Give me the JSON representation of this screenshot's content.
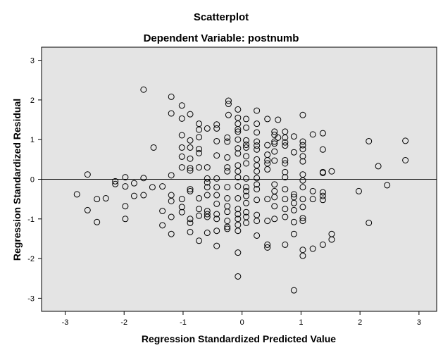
{
  "chart_data": {
    "type": "scatter",
    "title": "Scatterplot",
    "subtitle": "Dependent Variable: postnumb",
    "xlabel": "Regression Standardized Predicted Value",
    "ylabel": "Regression Standardized Residual",
    "xlim": [
      -3.4,
      3.3
    ],
    "ylim": [
      -3.33,
      3.33
    ],
    "xticks": [
      -3,
      -2,
      -1,
      0,
      1,
      2,
      3
    ],
    "yticks": [
      -3,
      -2,
      -1,
      0,
      1,
      2,
      3
    ],
    "reference_line_y": 0,
    "grid": false,
    "legend": "none",
    "colors": {
      "plot_bg": "#e4e4e4",
      "marker": "#000000",
      "page_bg": "#ffffff"
    },
    "points": [
      [
        -1.67,
        2.26
      ],
      [
        -1.2,
        2.08
      ],
      [
        -0.23,
        1.98
      ],
      [
        -0.23,
        1.9
      ],
      [
        -0.07,
        1.76
      ],
      [
        -1.02,
        1.86
      ],
      [
        -1.2,
        1.66
      ],
      [
        -1.02,
        1.53
      ],
      [
        -0.88,
        1.64
      ],
      [
        -0.07,
        1.55
      ],
      [
        -0.23,
        1.62
      ],
      [
        -0.07,
        1.4
      ],
      [
        0.07,
        1.52
      ],
      [
        0.25,
        1.73
      ],
      [
        0.25,
        1.4
      ],
      [
        0.43,
        1.52
      ],
      [
        0.61,
        1.5
      ],
      [
        1.03,
        1.62
      ],
      [
        -0.73,
        1.4
      ],
      [
        -0.59,
        1.28
      ],
      [
        -0.73,
        1.25
      ],
      [
        -0.43,
        1.38
      ],
      [
        -0.43,
        1.28
      ],
      [
        -0.07,
        1.26
      ],
      [
        -0.07,
        1.2
      ],
      [
        0.07,
        1.3
      ],
      [
        0.25,
        1.18
      ],
      [
        0.55,
        1.2
      ],
      [
        0.55,
        1.12
      ],
      [
        0.61,
        1.05
      ],
      [
        0.73,
        1.2
      ],
      [
        0.73,
        1.05
      ],
      [
        0.88,
        1.08
      ],
      [
        1.2,
        1.13
      ],
      [
        1.37,
        1.16
      ],
      [
        -1.02,
        1.11
      ],
      [
        -0.73,
        1.06
      ],
      [
        -0.88,
        0.98
      ],
      [
        -0.43,
        0.96
      ],
      [
        -0.25,
        1.05
      ],
      [
        -0.25,
        0.95
      ],
      [
        -0.07,
        1.0
      ],
      [
        0.07,
        0.98
      ],
      [
        0.07,
        0.87
      ],
      [
        0.25,
        0.95
      ],
      [
        0.25,
        0.85
      ],
      [
        0.43,
        0.86
      ],
      [
        0.55,
        0.95
      ],
      [
        0.55,
        0.9
      ],
      [
        0.73,
        0.93
      ],
      [
        0.73,
        0.85
      ],
      [
        1.03,
        0.95
      ],
      [
        1.03,
        0.86
      ],
      [
        -1.5,
        0.8
      ],
      [
        -1.02,
        0.8
      ],
      [
        -0.88,
        0.8
      ],
      [
        -0.73,
        0.76
      ],
      [
        -0.07,
        0.78
      ],
      [
        0.07,
        0.8
      ],
      [
        0.25,
        0.75
      ],
      [
        0.43,
        0.62
      ],
      [
        0.55,
        0.7
      ],
      [
        0.88,
        0.68
      ],
      [
        1.03,
        0.76
      ],
      [
        1.37,
        0.75
      ],
      [
        2.15,
        0.96
      ],
      [
        2.77,
        0.97
      ],
      [
        -1.02,
        0.57
      ],
      [
        -0.88,
        0.52
      ],
      [
        -0.73,
        0.66
      ],
      [
        -0.43,
        0.6
      ],
      [
        -0.25,
        0.55
      ],
      [
        -0.07,
        0.65
      ],
      [
        0.07,
        0.58
      ],
      [
        0.25,
        0.5
      ],
      [
        0.43,
        0.48
      ],
      [
        0.55,
        0.47
      ],
      [
        0.73,
        0.48
      ],
      [
        0.73,
        0.4
      ],
      [
        1.03,
        0.58
      ],
      [
        1.03,
        0.45
      ],
      [
        0.43,
        0.4
      ],
      [
        0.25,
        0.35
      ],
      [
        0.07,
        0.4
      ],
      [
        -0.07,
        0.35
      ],
      [
        -1.02,
        0.3
      ],
      [
        -0.88,
        0.28
      ],
      [
        -0.88,
        0.22
      ],
      [
        -0.73,
        0.3
      ],
      [
        -0.59,
        0.3
      ],
      [
        -0.25,
        0.3
      ],
      [
        -0.25,
        0.2
      ],
      [
        -0.07,
        0.2
      ],
      [
        0.25,
        0.2
      ],
      [
        0.43,
        0.25
      ],
      [
        0.73,
        0.18
      ],
      [
        1.03,
        0.12
      ],
      [
        1.37,
        0.18
      ],
      [
        1.37,
        0.16
      ],
      [
        1.52,
        0.2
      ],
      [
        2.31,
        0.33
      ],
      [
        2.77,
        0.48
      ],
      [
        -2.62,
        0.12
      ],
      [
        -1.67,
        0.03
      ],
      [
        -1.2,
        0.1
      ],
      [
        -0.59,
        0.02
      ],
      [
        -0.43,
        0.02
      ],
      [
        -0.07,
        0.05
      ],
      [
        0.07,
        0.02
      ],
      [
        0.25,
        0.03
      ],
      [
        0.73,
        0.05
      ],
      [
        1.03,
        -0.03
      ],
      [
        -2.15,
        -0.05
      ],
      [
        -2.15,
        -0.12
      ],
      [
        -1.98,
        0.05
      ],
      [
        -1.98,
        -0.18
      ],
      [
        -1.83,
        -0.1
      ],
      [
        -1.52,
        -0.2
      ],
      [
        -1.35,
        -0.18
      ],
      [
        -0.88,
        -0.25
      ],
      [
        -0.88,
        -0.3
      ],
      [
        -0.59,
        -0.2
      ],
      [
        -0.59,
        -0.08
      ],
      [
        -0.43,
        -0.2
      ],
      [
        -0.25,
        -0.2
      ],
      [
        -0.07,
        -0.18
      ],
      [
        0.07,
        -0.2
      ],
      [
        0.07,
        -0.3
      ],
      [
        0.25,
        -0.13
      ],
      [
        0.25,
        -0.25
      ],
      [
        0.55,
        -0.13
      ],
      [
        0.55,
        -0.3
      ],
      [
        0.73,
        -0.25
      ],
      [
        0.88,
        -0.38
      ],
      [
        1.03,
        -0.2
      ],
      [
        1.2,
        -0.3
      ],
      [
        1.37,
        -0.33
      ],
      [
        1.98,
        -0.3
      ],
      [
        2.46,
        -0.15
      ],
      [
        -2.8,
        -0.38
      ],
      [
        -2.62,
        -0.78
      ],
      [
        -2.46,
        -0.5
      ],
      [
        -2.31,
        -0.48
      ],
      [
        -1.98,
        -0.68
      ],
      [
        -1.83,
        -0.42
      ],
      [
        -1.67,
        -0.4
      ],
      [
        -1.2,
        -0.4
      ],
      [
        -1.2,
        -0.55
      ],
      [
        -1.35,
        -0.8
      ],
      [
        -1.02,
        -0.5
      ],
      [
        -1.02,
        -0.7
      ],
      [
        -0.73,
        -0.48
      ],
      [
        -0.73,
        -0.75
      ],
      [
        -0.59,
        -0.4
      ],
      [
        -0.59,
        -0.8
      ],
      [
        -0.43,
        -0.4
      ],
      [
        -0.43,
        -0.62
      ],
      [
        -0.25,
        -0.48
      ],
      [
        -0.25,
        -0.68
      ],
      [
        -0.07,
        -0.48
      ],
      [
        -0.07,
        -0.75
      ],
      [
        0.07,
        -0.42
      ],
      [
        0.07,
        -0.6
      ],
      [
        0.25,
        -0.52
      ],
      [
        0.43,
        -0.5
      ],
      [
        0.55,
        -0.45
      ],
      [
        0.55,
        -0.68
      ],
      [
        0.73,
        -0.5
      ],
      [
        0.73,
        -0.75
      ],
      [
        0.88,
        -0.45
      ],
      [
        0.88,
        -0.6
      ],
      [
        0.88,
        -0.78
      ],
      [
        1.03,
        -0.5
      ],
      [
        1.03,
        -0.7
      ],
      [
        1.2,
        -0.5
      ],
      [
        1.37,
        -0.42
      ],
      [
        1.37,
        -0.52
      ],
      [
        -2.46,
        -1.08
      ],
      [
        -1.98,
        -1.0
      ],
      [
        -1.35,
        -1.16
      ],
      [
        -1.2,
        -0.95
      ],
      [
        -1.02,
        -0.83
      ],
      [
        -0.88,
        -1.1
      ],
      [
        -0.88,
        -1.0
      ],
      [
        -0.73,
        -0.92
      ],
      [
        -0.59,
        -0.88
      ],
      [
        -0.59,
        -0.95
      ],
      [
        -0.43,
        -0.88
      ],
      [
        -0.43,
        -1.0
      ],
      [
        -0.25,
        -0.82
      ],
      [
        -0.25,
        -1.05
      ],
      [
        -0.25,
        -1.2
      ],
      [
        -0.07,
        -0.88
      ],
      [
        -0.07,
        -1.0
      ],
      [
        -0.07,
        -1.15
      ],
      [
        0.07,
        -0.83
      ],
      [
        0.07,
        -1.1
      ],
      [
        0.07,
        -0.95
      ],
      [
        0.25,
        -0.9
      ],
      [
        0.25,
        -1.05
      ],
      [
        0.43,
        -1.05
      ],
      [
        0.55,
        -1.0
      ],
      [
        0.73,
        -0.95
      ],
      [
        0.88,
        -1.08
      ],
      [
        1.03,
        -0.98
      ],
      [
        1.03,
        -1.05
      ],
      [
        2.15,
        -1.1
      ],
      [
        -1.2,
        -1.38
      ],
      [
        -0.88,
        -1.33
      ],
      [
        -0.73,
        -1.55
      ],
      [
        -0.59,
        -1.35
      ],
      [
        -0.43,
        -1.3
      ],
      [
        -0.43,
        -1.68
      ],
      [
        -0.25,
        -1.25
      ],
      [
        -0.07,
        -1.3
      ],
      [
        0.25,
        -1.42
      ],
      [
        0.43,
        -1.65
      ],
      [
        0.43,
        -1.72
      ],
      [
        0.73,
        -1.65
      ],
      [
        0.88,
        -1.38
      ],
      [
        1.03,
        -1.78
      ],
      [
        1.2,
        -1.75
      ],
      [
        1.37,
        -1.65
      ],
      [
        1.52,
        -1.52
      ],
      [
        1.52,
        -1.38
      ],
      [
        -0.07,
        -1.85
      ],
      [
        1.03,
        -1.93
      ],
      [
        -0.07,
        -2.45
      ],
      [
        0.88,
        -2.8
      ]
    ]
  }
}
